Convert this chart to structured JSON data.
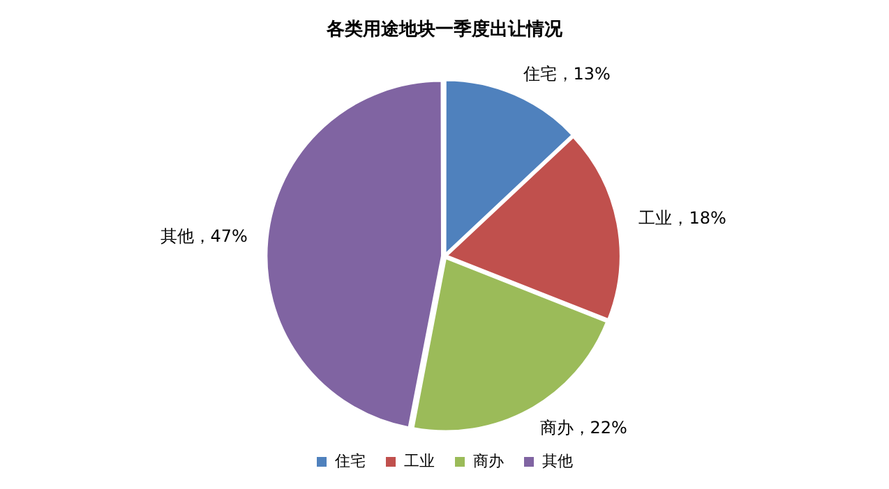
{
  "chart_data": {
    "type": "pie",
    "title": "各类用途地块一季度出让情况",
    "categories": [
      "住宅",
      "工业",
      "商办",
      "其他"
    ],
    "values": [
      13,
      18,
      22,
      47
    ],
    "colors": [
      "#4f81bd",
      "#c0504d",
      "#9bbb59",
      "#8064a2"
    ],
    "value_labels": [
      "住宅，13%",
      "工业，18%",
      "商办，22%",
      "其他，47%"
    ],
    "legend": "bottom"
  }
}
